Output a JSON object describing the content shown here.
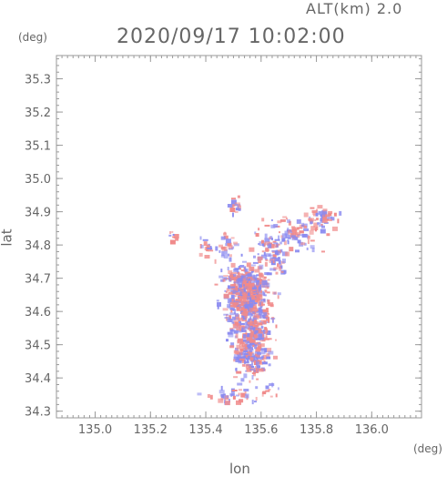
{
  "header": {
    "altitude_label": "ALT(km) 2.0",
    "timestamp": "2020/09/17 10:02:00"
  },
  "axes": {
    "y_unit": "(deg)",
    "x_unit": "(deg)",
    "x_label": "lon",
    "y_label": "lat"
  },
  "colors": {
    "positive": "#f08a8a",
    "negative": "#8a8af0",
    "frame": "#999999"
  },
  "chart_data": {
    "type": "heatmap",
    "xlabel": "lon",
    "ylabel": "lat",
    "xlim": [
      134.86,
      136.18
    ],
    "ylim": [
      34.28,
      35.37
    ],
    "xticks": [
      135.0,
      135.2,
      135.4,
      135.6,
      135.8,
      136.0
    ],
    "xtick_labels": [
      "135.0",
      "135.2",
      "135.4",
      "135.6",
      "135.8",
      "136.0"
    ],
    "yticks": [
      34.3,
      34.4,
      34.5,
      34.6,
      34.7,
      34.8,
      34.9,
      35.0,
      35.1,
      35.2,
      35.3
    ],
    "ytick_labels": [
      "34.3",
      "34.4",
      "34.5",
      "34.6",
      "34.7",
      "34.8",
      "34.9",
      "35.0",
      "35.1",
      "35.2",
      "35.3"
    ],
    "grid": false,
    "clusters": [
      {
        "lon": 135.55,
        "lat": 34.62,
        "sd_lon": 0.045,
        "sd_lat": 0.06,
        "n": 520
      },
      {
        "lon": 135.56,
        "lat": 34.48,
        "sd_lon": 0.03,
        "sd_lat": 0.04,
        "n": 220
      },
      {
        "lon": 135.53,
        "lat": 34.69,
        "sd_lon": 0.04,
        "sd_lat": 0.02,
        "n": 120
      },
      {
        "lon": 135.64,
        "lat": 34.78,
        "sd_lon": 0.03,
        "sd_lat": 0.04,
        "n": 90
      },
      {
        "lon": 135.72,
        "lat": 34.84,
        "sd_lon": 0.04,
        "sd_lat": 0.03,
        "n": 80
      },
      {
        "lon": 135.82,
        "lat": 34.88,
        "sd_lon": 0.025,
        "sd_lat": 0.02,
        "n": 50
      },
      {
        "lon": 135.5,
        "lat": 34.92,
        "sd_lon": 0.015,
        "sd_lat": 0.01,
        "n": 18
      },
      {
        "lon": 135.47,
        "lat": 34.8,
        "sd_lon": 0.02,
        "sd_lat": 0.02,
        "n": 25
      },
      {
        "lon": 135.39,
        "lat": 34.8,
        "sd_lon": 0.012,
        "sd_lat": 0.015,
        "n": 14
      },
      {
        "lon": 135.28,
        "lat": 34.83,
        "sd_lon": 0.01,
        "sd_lat": 0.01,
        "n": 8
      },
      {
        "lon": 135.5,
        "lat": 34.35,
        "sd_lon": 0.05,
        "sd_lat": 0.01,
        "n": 40
      },
      {
        "lon": 135.64,
        "lat": 34.37,
        "sd_lon": 0.02,
        "sd_lat": 0.01,
        "n": 10
      }
    ]
  }
}
